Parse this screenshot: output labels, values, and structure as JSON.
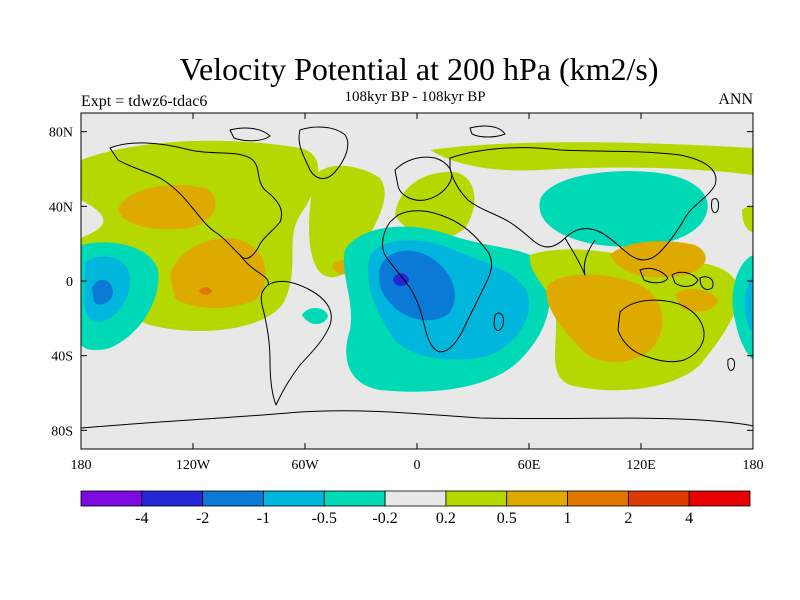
{
  "title": "Velocity Potential at 200 hPa (km2/s)",
  "subtitle": "108kyr BP - 108kyr BP",
  "left_label": "Expt = tdwz6-tdac6",
  "right_label": "ANN",
  "map": {
    "lon_range": [
      -180,
      180
    ],
    "lat_range": [
      -90,
      90
    ],
    "background_color": "#e8e8e8",
    "x_ticks": [
      {
        "lon": -180,
        "label": "180"
      },
      {
        "lon": -120,
        "label": "120W"
      },
      {
        "lon": -60,
        "label": "60W"
      },
      {
        "lon": 0,
        "label": "0"
      },
      {
        "lon": 60,
        "label": "60E"
      },
      {
        "lon": 120,
        "label": "120E"
      },
      {
        "lon": 180,
        "label": "180"
      }
    ],
    "y_ticks": [
      {
        "lat": 80,
        "label": "80N"
      },
      {
        "lat": 40,
        "label": "40N"
      },
      {
        "lat": 0,
        "label": "0"
      },
      {
        "lat": -40,
        "label": "40S"
      },
      {
        "lat": -80,
        "label": "80S"
      }
    ]
  },
  "colorbar": {
    "colors": [
      "#7c0be0",
      "#2626d6",
      "#0a7ad6",
      "#00b6dc",
      "#00d9b6",
      "#e8e8e8",
      "#b5d800",
      "#dfaa00",
      "#e17600",
      "#dd3a00",
      "#e80000"
    ],
    "labels": [
      "-4",
      "-2",
      "-1",
      "-0.5",
      "-0.2",
      "0.2",
      "0.5",
      "1",
      "2",
      "4"
    ]
  }
}
